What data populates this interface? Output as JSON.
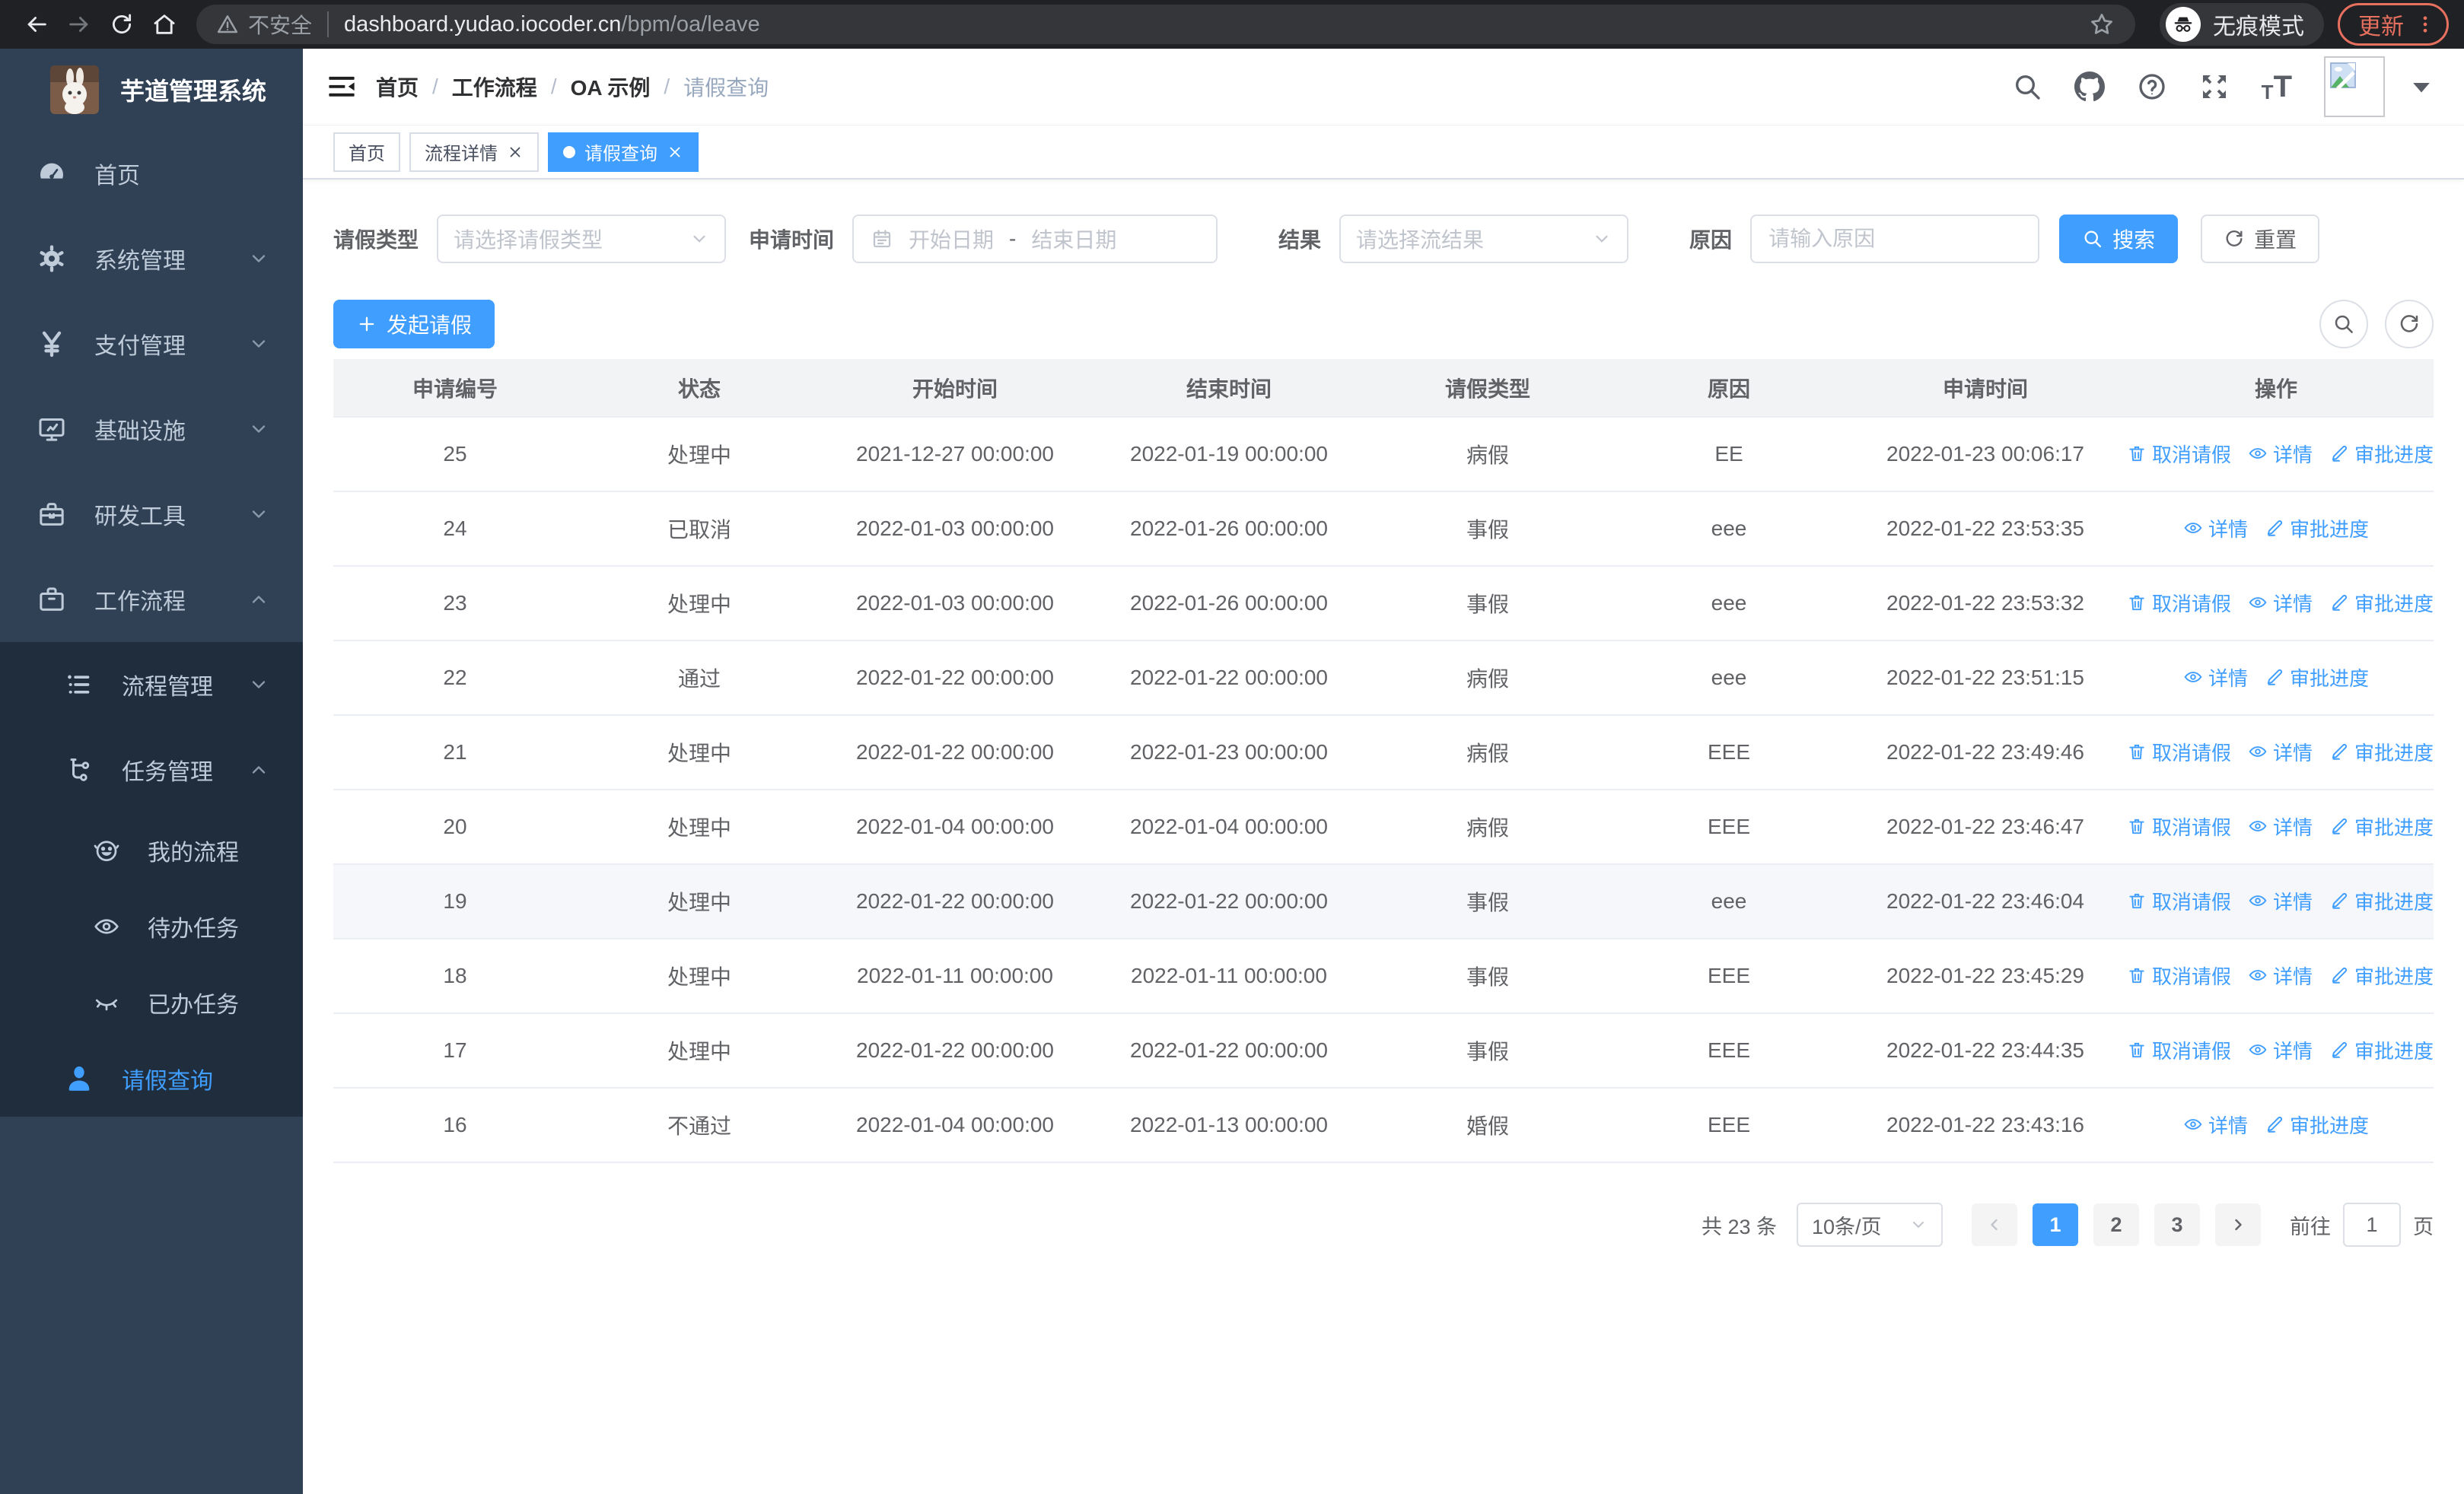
{
  "colors": {
    "primary": "#409eff",
    "sidebar_bg": "#304156",
    "sidebar_sub_bg": "#1f2d3d",
    "sidebar_text": "#bfcbd9",
    "chrome_bg": "#202124",
    "chrome_field": "#35363a",
    "update_accent": "#e8705f",
    "table_header_bg": "#f2f3f5",
    "row_highlight": "#f5f7fa",
    "border": "#dcdfe6",
    "placeholder": "#c0c4cc"
  },
  "browser": {
    "security_label": "不安全",
    "url_host": "dashboard.yudao.iocoder.cn",
    "url_path": "/bpm/oa/leave",
    "incognito_label": "无痕模式",
    "update_label": "更新"
  },
  "sidebar": {
    "app_title": "芋道管理系统",
    "items": [
      {
        "key": "home",
        "label": "首页",
        "icon": "dashboard-icon",
        "level": 1
      },
      {
        "key": "system",
        "label": "系统管理",
        "icon": "gear-icon",
        "level": 1,
        "chevron": "down"
      },
      {
        "key": "payment",
        "label": "支付管理",
        "icon": "yen-icon",
        "level": 1,
        "chevron": "down"
      },
      {
        "key": "infrastructure",
        "label": "基础设施",
        "icon": "monitor-icon",
        "level": 1,
        "chevron": "down"
      },
      {
        "key": "devtools",
        "label": "研发工具",
        "icon": "toolbox-icon",
        "level": 1,
        "chevron": "down"
      },
      {
        "key": "workflow",
        "label": "工作流程",
        "icon": "briefcase-icon",
        "level": 1,
        "chevron": "up"
      },
      {
        "key": "process-mgmt",
        "label": "流程管理",
        "icon": "list-icon",
        "level": 2,
        "chevron": "down",
        "sub": true
      },
      {
        "key": "task-mgmt",
        "label": "任务管理",
        "icon": "flow-icon",
        "level": 2,
        "chevron": "up",
        "sub": true
      },
      {
        "key": "my-process",
        "label": "我的流程",
        "icon": "face-icon",
        "level": 3,
        "sub": true
      },
      {
        "key": "todo-tasks",
        "label": "待办任务",
        "icon": "eye-icon",
        "level": 3,
        "sub": true
      },
      {
        "key": "done-tasks",
        "label": "已办任务",
        "icon": "eye-closed-icon",
        "level": 3,
        "sub": true
      },
      {
        "key": "leave-query",
        "label": "请假查询",
        "icon": "user-icon",
        "level": 2,
        "sub": true,
        "active": true
      }
    ]
  },
  "breadcrumb": {
    "separator": "/",
    "items": [
      "首页",
      "工作流程",
      "OA 示例",
      "请假查询"
    ]
  },
  "tabs": [
    {
      "label": "首页",
      "closable": false,
      "active": false
    },
    {
      "label": "流程详情",
      "closable": true,
      "active": false
    },
    {
      "label": "请假查询",
      "closable": true,
      "active": true
    }
  ],
  "filters": {
    "leave_type_label": "请假类型",
    "leave_type_placeholder": "请选择请假类型",
    "apply_time_label": "申请时间",
    "start_date_placeholder": "开始日期",
    "range_separator": "-",
    "end_date_placeholder": "结束日期",
    "result_label": "结果",
    "result_placeholder": "请选择流结果",
    "reason_label": "原因",
    "reason_placeholder": "请输入原因",
    "search_button": "搜索",
    "reset_button": "重置"
  },
  "toolbar": {
    "create_button": "发起请假"
  },
  "table": {
    "columns": [
      "申请编号",
      "状态",
      "开始时间",
      "结束时间",
      "请假类型",
      "原因",
      "申请时间",
      "操作"
    ],
    "action_labels": {
      "cancel": "取消请假",
      "detail": "详情",
      "progress": "审批进度"
    },
    "rows": [
      {
        "id": "25",
        "status": "处理中",
        "start": "2021-12-27 00:00:00",
        "end": "2022-01-19 00:00:00",
        "type": "病假",
        "reason": "EE",
        "applied": "2022-01-23 00:06:17",
        "actions": [
          "cancel",
          "detail",
          "progress"
        ],
        "highlight": false
      },
      {
        "id": "24",
        "status": "已取消",
        "start": "2022-01-03 00:00:00",
        "end": "2022-01-26 00:00:00",
        "type": "事假",
        "reason": "eee",
        "applied": "2022-01-22 23:53:35",
        "actions": [
          "detail",
          "progress"
        ],
        "highlight": false
      },
      {
        "id": "23",
        "status": "处理中",
        "start": "2022-01-03 00:00:00",
        "end": "2022-01-26 00:00:00",
        "type": "事假",
        "reason": "eee",
        "applied": "2022-01-22 23:53:32",
        "actions": [
          "cancel",
          "detail",
          "progress"
        ],
        "highlight": false
      },
      {
        "id": "22",
        "status": "通过",
        "start": "2022-01-22 00:00:00",
        "end": "2022-01-22 00:00:00",
        "type": "病假",
        "reason": "eee",
        "applied": "2022-01-22 23:51:15",
        "actions": [
          "detail",
          "progress"
        ],
        "highlight": false
      },
      {
        "id": "21",
        "status": "处理中",
        "start": "2022-01-22 00:00:00",
        "end": "2022-01-23 00:00:00",
        "type": "病假",
        "reason": "EEE",
        "applied": "2022-01-22 23:49:46",
        "actions": [
          "cancel",
          "detail",
          "progress"
        ],
        "highlight": false
      },
      {
        "id": "20",
        "status": "处理中",
        "start": "2022-01-04 00:00:00",
        "end": "2022-01-04 00:00:00",
        "type": "病假",
        "reason": "EEE",
        "applied": "2022-01-22 23:46:47",
        "actions": [
          "cancel",
          "detail",
          "progress"
        ],
        "highlight": false
      },
      {
        "id": "19",
        "status": "处理中",
        "start": "2022-01-22 00:00:00",
        "end": "2022-01-22 00:00:00",
        "type": "事假",
        "reason": "eee",
        "applied": "2022-01-22 23:46:04",
        "actions": [
          "cancel",
          "detail",
          "progress"
        ],
        "highlight": true
      },
      {
        "id": "18",
        "status": "处理中",
        "start": "2022-01-11 00:00:00",
        "end": "2022-01-11 00:00:00",
        "type": "事假",
        "reason": "EEE",
        "applied": "2022-01-22 23:45:29",
        "actions": [
          "cancel",
          "detail",
          "progress"
        ],
        "highlight": false
      },
      {
        "id": "17",
        "status": "处理中",
        "start": "2022-01-22 00:00:00",
        "end": "2022-01-22 00:00:00",
        "type": "事假",
        "reason": "EEE",
        "applied": "2022-01-22 23:44:35",
        "actions": [
          "cancel",
          "detail",
          "progress"
        ],
        "highlight": false
      },
      {
        "id": "16",
        "status": "不通过",
        "start": "2022-01-04 00:00:00",
        "end": "2022-01-13 00:00:00",
        "type": "婚假",
        "reason": "EEE",
        "applied": "2022-01-22 23:43:16",
        "actions": [
          "detail",
          "progress"
        ],
        "highlight": false
      }
    ]
  },
  "pagination": {
    "total_label": "共 23 条",
    "page_size": "10条/页",
    "pages": [
      "1",
      "2",
      "3"
    ],
    "active_page": "1",
    "goto_label": "前往",
    "goto_value": "1",
    "unit_label": "页"
  }
}
